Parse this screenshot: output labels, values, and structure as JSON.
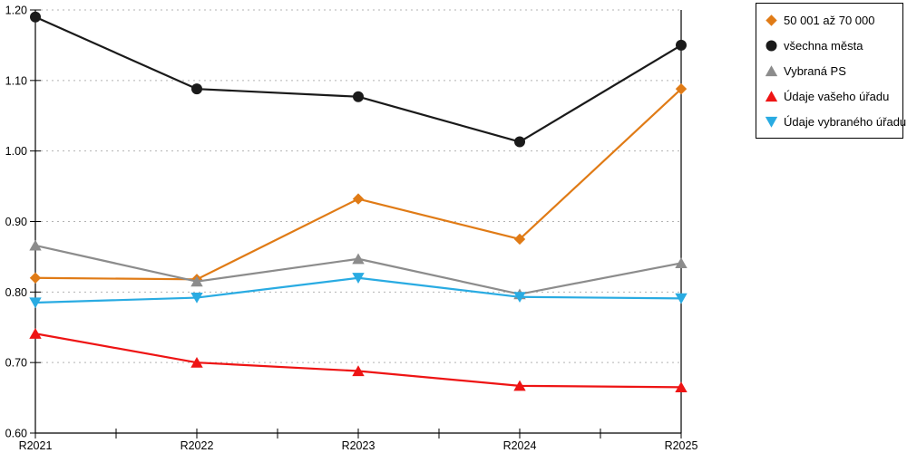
{
  "chart_data": {
    "type": "line",
    "categories": [
      "R2021",
      "R2022",
      "R2023",
      "R2024",
      "R2025"
    ],
    "series": [
      {
        "name": "50 001 až 70 000",
        "marker": "diamond",
        "color": "#E07B16",
        "values": [
          0.82,
          0.818,
          0.932,
          0.875,
          1.088
        ]
      },
      {
        "name": "všechna města",
        "marker": "circle",
        "color": "#1A1A1A",
        "values": [
          1.19,
          1.088,
          1.077,
          1.013,
          1.15
        ]
      },
      {
        "name": "Vybraná PS",
        "marker": "triangle-up",
        "color": "#8C8C8C",
        "values": [
          0.866,
          0.815,
          0.847,
          0.797,
          0.841
        ]
      },
      {
        "name": "Údaje vašeho úřadu",
        "marker": "triangle-up",
        "color": "#EE1414",
        "values": [
          0.741,
          0.7,
          0.688,
          0.667,
          0.665
        ]
      },
      {
        "name": "Údaje vybraného úřadu",
        "marker": "triangle-down",
        "color": "#29ABE2",
        "values": [
          0.785,
          0.792,
          0.82,
          0.793,
          0.791
        ]
      }
    ],
    "title": "",
    "xlabel": "",
    "ylabel": "",
    "ylim": [
      0.6,
      1.2
    ],
    "ytick_labels": [
      "0.60",
      "0.70",
      "0.80",
      "0.90",
      "1.00",
      "1.10",
      "1.20"
    ],
    "grid": "horizontal-dotted",
    "gridline_color": "#B3B3B3",
    "axis_color": "#000000",
    "legend_position": "top-right"
  }
}
